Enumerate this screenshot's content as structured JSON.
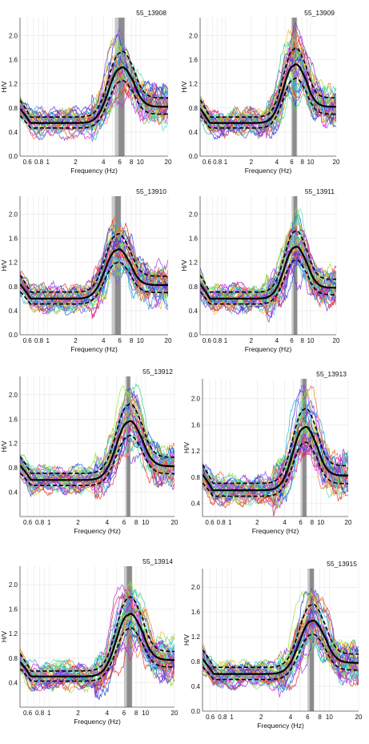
{
  "chart_data": [
    {
      "type": "line",
      "title": "55_13908",
      "xlabel": "Frequency (Hz)",
      "ylabel": "H/V",
      "xlim": [
        0.5,
        20
      ],
      "ylim": [
        0.0,
        2.3
      ],
      "x_scale": "log",
      "x_ticks": [
        {
          "v": 0.6,
          "t": "0.6"
        },
        {
          "v": 0.8,
          "t": "0.8"
        },
        {
          "v": 1,
          "t": "1"
        },
        {
          "v": 2,
          "t": "2"
        },
        {
          "v": 4,
          "t": "4"
        },
        {
          "v": 6,
          "t": "6"
        },
        {
          "v": 8,
          "t": "8"
        },
        {
          "v": 10,
          "t": "10"
        },
        {
          "v": 20,
          "t": "20"
        }
      ],
      "y_ticks": [
        0.0,
        0.4,
        0.8,
        1.2,
        1.6,
        2.0
      ],
      "peak_freq": 6.0,
      "peak_band": [
        5.3,
        6.8
      ],
      "peak_amp": 1.45,
      "base_amp": 0.55,
      "high_amp": 0.85
    },
    {
      "type": "line",
      "title": "55_13909",
      "xlabel": "Frequency (Hz)",
      "ylabel": "H/V",
      "xlim": [
        0.5,
        20
      ],
      "ylim": [
        0.0,
        2.3
      ],
      "x_scale": "log",
      "x_ticks": [
        {
          "v": 0.6,
          "t": "0.6"
        },
        {
          "v": 0.8,
          "t": "0.8"
        },
        {
          "v": 1,
          "t": "1"
        },
        {
          "v": 2,
          "t": "2"
        },
        {
          "v": 4,
          "t": "4"
        },
        {
          "v": 6,
          "t": "6"
        },
        {
          "v": 8,
          "t": "8"
        },
        {
          "v": 10,
          "t": "10"
        },
        {
          "v": 20,
          "t": "20"
        }
      ],
      "y_ticks": [
        0.0,
        0.4,
        0.8,
        1.2,
        1.6,
        2.0
      ],
      "peak_freq": 6.3,
      "peak_band": [
        5.9,
        6.9
      ],
      "peak_amp": 1.5,
      "base_amp": 0.55,
      "high_amp": 0.85
    },
    {
      "type": "line",
      "title": "55_13910",
      "xlabel": "Frequency (Hz)",
      "ylabel": "H/V",
      "xlim": [
        0.5,
        20
      ],
      "ylim": [
        0.0,
        2.3
      ],
      "x_scale": "log",
      "x_ticks": [
        {
          "v": 0.6,
          "t": "0.6"
        },
        {
          "v": 0.8,
          "t": "0.8"
        },
        {
          "v": 1,
          "t": "1"
        },
        {
          "v": 2,
          "t": "2"
        },
        {
          "v": 4,
          "t": "4"
        },
        {
          "v": 6,
          "t": "6"
        },
        {
          "v": 8,
          "t": "8"
        },
        {
          "v": 10,
          "t": "10"
        },
        {
          "v": 20,
          "t": "20"
        }
      ],
      "y_ticks": [
        0.0,
        0.4,
        0.8,
        1.2,
        1.6,
        2.0
      ],
      "peak_freq": 5.5,
      "peak_band": [
        4.9,
        6.2
      ],
      "peak_amp": 1.4,
      "base_amp": 0.6,
      "high_amp": 0.85
    },
    {
      "type": "line",
      "title": "55_13911",
      "xlabel": "Frequency (Hz)",
      "ylabel": "H/V",
      "xlim": [
        0.5,
        20
      ],
      "ylim": [
        0.0,
        2.3
      ],
      "x_scale": "log",
      "x_ticks": [
        {
          "v": 0.6,
          "t": "0.6"
        },
        {
          "v": 0.8,
          "t": "0.8"
        },
        {
          "v": 1,
          "t": "1"
        },
        {
          "v": 2,
          "t": "2"
        },
        {
          "v": 4,
          "t": "4"
        },
        {
          "v": 6,
          "t": "6"
        },
        {
          "v": 8,
          "t": "8"
        },
        {
          "v": 10,
          "t": "10"
        },
        {
          "v": 20,
          "t": "20"
        }
      ],
      "y_ticks": [
        0.0,
        0.4,
        0.8,
        1.2,
        1.6,
        2.0
      ],
      "peak_freq": 6.5,
      "peak_band": [
        6.0,
        7.0
      ],
      "peak_amp": 1.45,
      "base_amp": 0.6,
      "high_amp": 0.8
    },
    {
      "type": "line",
      "title": "55_13912",
      "xlabel": "Frequency (Hz)",
      "ylabel": "H/V",
      "xlim": [
        0.5,
        20
      ],
      "ylim": [
        0.0,
        2.3
      ],
      "x_scale": "log",
      "x_ticks": [
        {
          "v": 0.6,
          "t": "0.6"
        },
        {
          "v": 0.8,
          "t": "0.8"
        },
        {
          "v": 1,
          "t": "1"
        },
        {
          "v": 2,
          "t": "2"
        },
        {
          "v": 4,
          "t": "4"
        },
        {
          "v": 6,
          "t": "6"
        },
        {
          "v": 8,
          "t": "8"
        },
        {
          "v": 10,
          "t": "10"
        },
        {
          "v": 20,
          "t": "20"
        }
      ],
      "y_ticks": [
        0.4,
        0.8,
        1.2,
        1.6,
        2.0
      ],
      "peak_freq": 6.6,
      "peak_band": [
        6.2,
        7.0
      ],
      "peak_amp": 1.55,
      "base_amp": 0.6,
      "high_amp": 0.85
    },
    {
      "type": "line",
      "title": "55_13913",
      "xlabel": "Frequency (Hz)",
      "ylabel": "H/V",
      "xlim": [
        0.5,
        20
      ],
      "ylim": [
        0.2,
        2.3
      ],
      "x_scale": "log",
      "x_ticks": [
        {
          "v": 0.6,
          "t": "0.6"
        },
        {
          "v": 0.8,
          "t": "0.8"
        },
        {
          "v": 1,
          "t": "1"
        },
        {
          "v": 2,
          "t": "2"
        },
        {
          "v": 4,
          "t": "4"
        },
        {
          "v": 6,
          "t": "6"
        },
        {
          "v": 8,
          "t": "8"
        },
        {
          "v": 10,
          "t": "10"
        },
        {
          "v": 20,
          "t": "20"
        }
      ],
      "y_ticks": [
        0.4,
        0.8,
        1.2,
        1.6,
        2.0
      ],
      "peak_freq": 6.5,
      "peak_band": [
        6.0,
        7.0
      ],
      "peak_amp": 1.55,
      "base_amp": 0.6,
      "high_amp": 0.85
    },
    {
      "type": "line",
      "title": "55_13914",
      "xlabel": "Frequency (Hz)",
      "ylabel": "H/V",
      "xlim": [
        0.5,
        20
      ],
      "ylim": [
        0.0,
        2.3
      ],
      "x_scale": "log",
      "x_ticks": [
        {
          "v": 0.6,
          "t": "0.6"
        },
        {
          "v": 0.8,
          "t": "0.8"
        },
        {
          "v": 1,
          "t": "1"
        },
        {
          "v": 2,
          "t": "2"
        },
        {
          "v": 4,
          "t": "4"
        },
        {
          "v": 6,
          "t": "6"
        },
        {
          "v": 8,
          "t": "8"
        },
        {
          "v": 10,
          "t": "10"
        },
        {
          "v": 20,
          "t": "20"
        }
      ],
      "y_ticks": [
        0.4,
        0.8,
        1.2,
        1.6,
        2.0
      ],
      "peak_freq": 6.6,
      "peak_band": [
        6.0,
        7.3
      ],
      "peak_amp": 1.5,
      "base_amp": 0.5,
      "high_amp": 0.8
    },
    {
      "type": "line",
      "title": "55_13915",
      "xlabel": "Frequency (Hz)",
      "ylabel": "H/V",
      "xlim": [
        0.5,
        20
      ],
      "ylim": [
        0.0,
        2.3
      ],
      "x_scale": "log",
      "x_ticks": [
        {
          "v": 0.6,
          "t": "0.6"
        },
        {
          "v": 0.8,
          "t": "0.8"
        },
        {
          "v": 1,
          "t": "1"
        },
        {
          "v": 2,
          "t": "2"
        },
        {
          "v": 4,
          "t": "4"
        },
        {
          "v": 6,
          "t": "6"
        },
        {
          "v": 8,
          "t": "8"
        },
        {
          "v": 10,
          "t": "10"
        },
        {
          "v": 20,
          "t": "20"
        }
      ],
      "y_ticks": [
        0.0,
        0.4,
        0.8,
        1.2,
        1.6,
        2.0
      ],
      "peak_freq": 6.5,
      "peak_band": [
        6.0,
        7.0
      ],
      "peak_amp": 1.45,
      "base_amp": 0.6,
      "high_amp": 0.8
    }
  ],
  "colors": {
    "window_curves": [
      "#1f3fd6",
      "#7b2fd0",
      "#d020d0",
      "#20b0e0",
      "#30d080",
      "#9ae030",
      "#f0c030",
      "#f07030",
      "#e03030",
      "#50e0c0",
      "#a040f0"
    ],
    "mean_curve": "#000000",
    "std_curve": "#000000",
    "band_light": "#c8c8c8",
    "band_dark": "#8c8c8c",
    "grid": "#e6e6e6"
  }
}
